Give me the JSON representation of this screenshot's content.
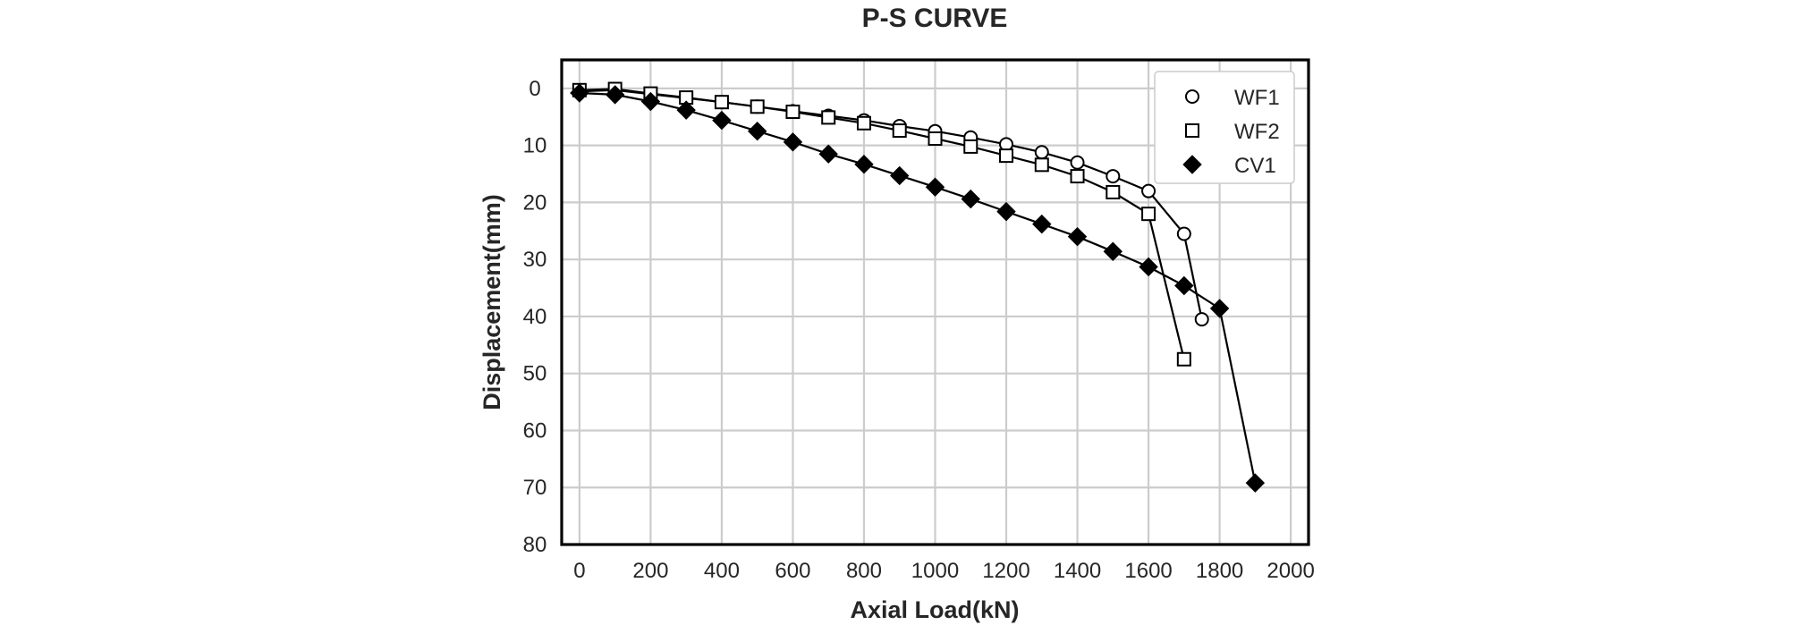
{
  "chart_data": {
    "type": "line",
    "title": "P-S CURVE",
    "xlabel": "Axial Load(kN)",
    "ylabel": "Displacement(mm)",
    "xlim": [
      -50,
      2050
    ],
    "ylim": [
      80,
      -5
    ],
    "y_inverted": true,
    "xticks": [
      0,
      200,
      400,
      600,
      800,
      1000,
      1200,
      1400,
      1600,
      1800,
      2000
    ],
    "yticks": [
      0,
      10,
      20,
      30,
      40,
      50,
      60,
      70,
      80
    ],
    "grid": true,
    "legend_position": "top-right",
    "series": [
      {
        "name": "WF1",
        "marker": "circle-open",
        "color": "#000000",
        "x": [
          0,
          100,
          200,
          300,
          400,
          500,
          600,
          700,
          800,
          900,
          1000,
          1100,
          1200,
          1300,
          1400,
          1500,
          1600,
          1700,
          1750
        ],
        "y": [
          0.5,
          0.3,
          1.0,
          1.7,
          2.4,
          3.2,
          4.0,
          4.8,
          5.6,
          6.6,
          7.5,
          8.6,
          9.8,
          11.2,
          13.0,
          15.4,
          18.0,
          25.5,
          40.5
        ]
      },
      {
        "name": "WF2",
        "marker": "square-open",
        "color": "#000000",
        "x": [
          0,
          100,
          200,
          300,
          400,
          500,
          600,
          700,
          800,
          900,
          1000,
          1100,
          1200,
          1300,
          1400,
          1500,
          1600,
          1700
        ],
        "y": [
          0.3,
          0.1,
          0.9,
          1.6,
          2.4,
          3.2,
          4.1,
          5.1,
          6.1,
          7.4,
          8.8,
          10.2,
          11.8,
          13.4,
          15.4,
          18.2,
          22.0,
          47.5
        ]
      },
      {
        "name": "CV1",
        "marker": "diamond-filled",
        "color": "#000000",
        "x": [
          0,
          100,
          200,
          300,
          400,
          500,
          600,
          700,
          800,
          900,
          1000,
          1100,
          1200,
          1300,
          1400,
          1500,
          1600,
          1700,
          1800,
          1900
        ],
        "y": [
          0.8,
          1.1,
          2.3,
          3.8,
          5.6,
          7.5,
          9.4,
          11.5,
          13.3,
          15.3,
          17.3,
          19.4,
          21.6,
          23.8,
          26.0,
          28.6,
          31.3,
          34.6,
          38.6,
          69.2
        ]
      }
    ]
  }
}
